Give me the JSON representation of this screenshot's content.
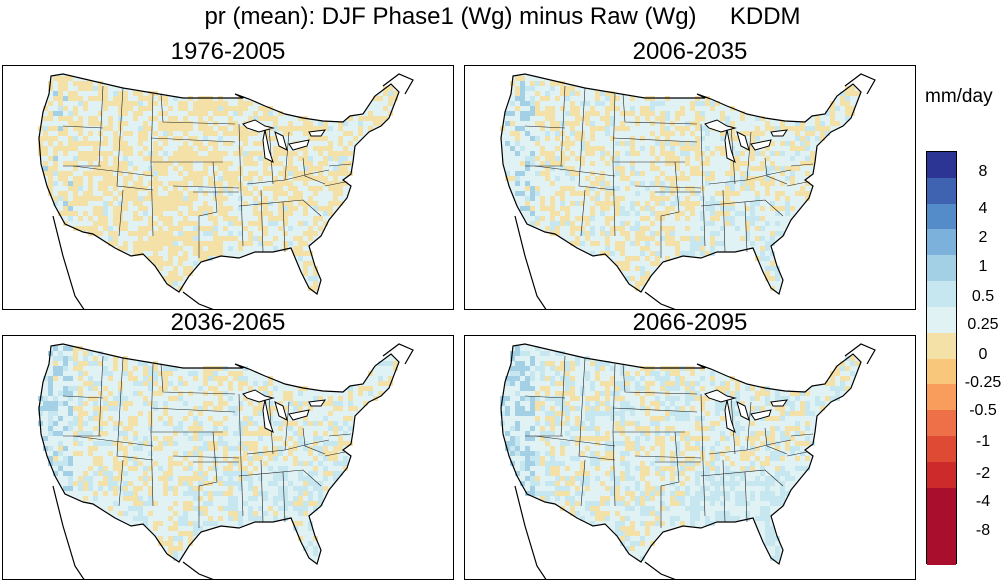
{
  "figure": {
    "title": "pr (mean): DJF Phase1 (Wg) minus Raw (Wg)     KDDM",
    "panels": [
      {
        "label": "1976-2005",
        "anomaly_level": "predominantly dry (-0.25 to 0) across western and central states"
      },
      {
        "label": "2006-2035",
        "anomaly_level": "mixed; slight wet bias along Pacific coast"
      },
      {
        "label": "2036-2065",
        "anomaly_level": "mixed; wet bias Pacific coast and Southeast"
      },
      {
        "label": "2066-2095",
        "anomaly_level": "strongest wet bias Pacific coast and Southeast"
      }
    ]
  },
  "colorbar": {
    "units": "mm/day",
    "tick_labels": [
      "8",
      "4",
      "2",
      "1",
      "0.5",
      "0.25",
      "0",
      "-0.25",
      "-0.5",
      "-1",
      "-2",
      "-4",
      "-8"
    ],
    "colors": [
      "#2c3593",
      "#3f62b1",
      "#548bc9",
      "#7cb1db",
      "#a4d0e6",
      "#c6e6f0",
      "#e1f2f4",
      "#f4e1a7",
      "#f9c77b",
      "#f89d5c",
      "#ed7048",
      "#df4a35",
      "#cc2a2b",
      "#a90e2c",
      "#a90e2c",
      "#a90e2c"
    ]
  },
  "palette": {
    "water": "#ffffff",
    "neutral": "#e1f2f4",
    "dry": "#f4e1a7",
    "wet_light": "#c6e6f0",
    "wet": "#a4d0e6"
  }
}
